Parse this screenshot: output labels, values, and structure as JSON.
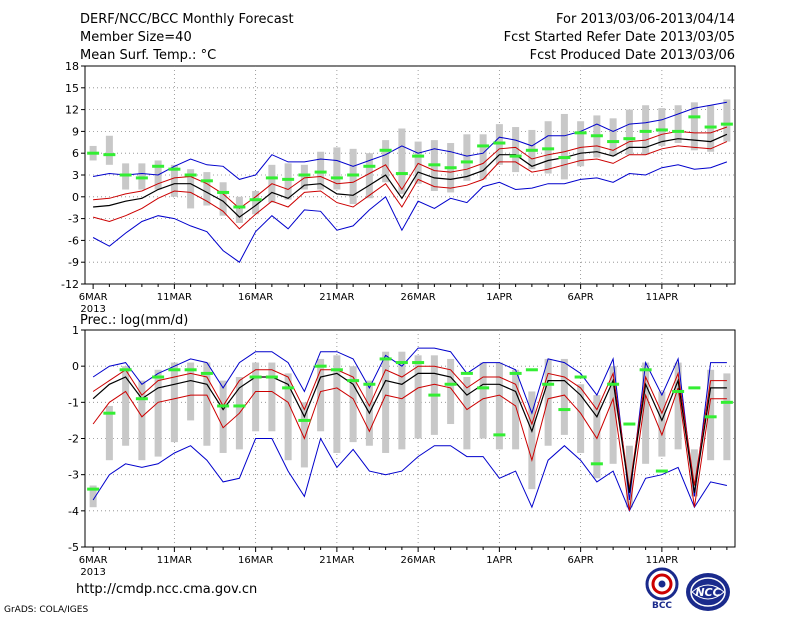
{
  "header": {
    "title": "DERF/NCC/BCC Monthly Forecast",
    "member_size": "Member Size=40",
    "variable": "Mean Surf. Temp.: °C",
    "period": "For 2013/03/06-2013/04/14",
    "started": "Fcst Started Refer Date 2013/03/05",
    "produced": "Fcst Produced Date 2013/03/06"
  },
  "footer": {
    "url": "http://cmdp.ncc.cma.gov.cn",
    "grads": "GrADS: COLA/IGES",
    "logo_bcc": "BCC",
    "logo_ncc": "NCC"
  },
  "colors": {
    "mean": "#000000",
    "band": "#cc0000",
    "envelope": "#0000cc",
    "obs": "#33ee33",
    "box": "#c8c8c8"
  },
  "chart_data": [
    {
      "type": "line",
      "title": "Mean Surf. Temp.: °C",
      "x_tick_labels": [
        "6MAR",
        "11MAR",
        "16MAR",
        "21MAR",
        "26MAR",
        "1APR",
        "6APR",
        "11APR"
      ],
      "x_year_label": "2013",
      "ylim": [
        -12,
        18
      ],
      "y_ticks": [
        -12,
        -9,
        -6,
        -3,
        0,
        3,
        6,
        9,
        12,
        15,
        18
      ],
      "x_days": 40,
      "series": [
        {
          "name": "max",
          "values": [
            2.8,
            3.2,
            3.0,
            3.2,
            3.0,
            4.2,
            5.2,
            4.4,
            4.2,
            2.4,
            3.0,
            5.8,
            4.8,
            4.8,
            5.2,
            5.0,
            4.2,
            5.0,
            5.8,
            7.0,
            6.0,
            6.6,
            6.2,
            5.6,
            6.0,
            8.2,
            7.8,
            7.0,
            8.4,
            8.4,
            9.0,
            10.0,
            9.0,
            10.0,
            10.2,
            10.6,
            11.4,
            12.2,
            12.6,
            13.0
          ]
        },
        {
          "name": "upper",
          "values": [
            -0.4,
            -0.2,
            0.4,
            0.8,
            1.8,
            2.6,
            2.8,
            1.8,
            0.4,
            -1.6,
            0.0,
            1.8,
            1.0,
            2.6,
            2.8,
            1.8,
            2.0,
            3.2,
            4.4,
            1.0,
            4.6,
            3.6,
            3.4,
            3.8,
            4.6,
            6.6,
            6.8,
            5.2,
            5.8,
            6.2,
            6.8,
            7.0,
            6.4,
            7.6,
            7.8,
            8.6,
            9.0,
            8.8,
            8.8,
            9.6
          ]
        },
        {
          "name": "mean",
          "values": [
            -1.4,
            -1.2,
            -0.6,
            -0.2,
            1.0,
            1.8,
            1.8,
            0.6,
            -0.6,
            -2.8,
            -1.2,
            0.6,
            -0.2,
            1.6,
            1.8,
            0.4,
            0.2,
            1.6,
            3.0,
            -0.2,
            3.4,
            2.6,
            2.4,
            2.8,
            3.6,
            5.8,
            5.8,
            4.2,
            5.0,
            5.4,
            6.0,
            6.2,
            5.6,
            6.8,
            6.8,
            7.6,
            8.0,
            7.8,
            7.6,
            8.6
          ]
        },
        {
          "name": "lower",
          "values": [
            -2.8,
            -3.4,
            -2.6,
            -1.6,
            -0.2,
            0.8,
            0.6,
            -0.6,
            -2.0,
            -4.4,
            -2.4,
            -0.6,
            -1.4,
            0.6,
            0.8,
            -0.8,
            -1.4,
            0.2,
            1.8,
            -1.4,
            2.4,
            1.4,
            1.2,
            1.6,
            2.4,
            4.8,
            4.8,
            3.4,
            3.8,
            4.4,
            5.0,
            5.2,
            4.6,
            5.8,
            5.8,
            6.6,
            7.0,
            6.8,
            6.6,
            7.6
          ]
        },
        {
          "name": "min",
          "values": [
            -5.6,
            -6.8,
            -5.0,
            -3.4,
            -2.6,
            -3.0,
            -4.0,
            -4.8,
            -7.4,
            -9.0,
            -4.8,
            -2.6,
            -4.4,
            -1.8,
            -2.0,
            -4.6,
            -4.0,
            -1.8,
            0.0,
            -4.6,
            -0.6,
            -1.6,
            -0.2,
            -0.8,
            1.4,
            2.0,
            1.0,
            1.2,
            1.8,
            1.8,
            2.4,
            2.6,
            2.0,
            3.2,
            3.0,
            4.0,
            4.4,
            3.8,
            4.0,
            4.8
          ]
        },
        {
          "name": "observed",
          "values": [
            6.0,
            5.8,
            3.0,
            2.6,
            4.2,
            3.8,
            3.0,
            2.2,
            0.6,
            -1.4,
            -0.4,
            2.6,
            2.4,
            3.0,
            3.4,
            2.6,
            3.0,
            4.2,
            6.4,
            3.2,
            5.6,
            4.4,
            4.0,
            4.8,
            7.0,
            7.4,
            5.6,
            6.4,
            6.6,
            5.4,
            8.8,
            8.4,
            7.6,
            8.0,
            9.0,
            9.2,
            9.0,
            11.0,
            9.6,
            10.0
          ]
        },
        {
          "name": "box_high",
          "values": [
            7.0,
            8.4,
            4.6,
            4.6,
            5.0,
            4.4,
            3.8,
            3.4,
            2.0,
            0.0,
            0.8,
            4.4,
            4.6,
            4.4,
            6.2,
            6.8,
            6.6,
            6.0,
            7.8,
            9.4,
            7.6,
            7.8,
            7.4,
            8.6,
            8.6,
            10.0,
            9.6,
            9.2,
            10.4,
            11.4,
            10.4,
            11.2,
            10.8,
            12.0,
            12.6,
            12.2,
            12.6,
            13.0,
            12.6,
            13.4
          ]
        },
        {
          "name": "box_low",
          "values": [
            5.0,
            4.4,
            1.0,
            1.0,
            1.0,
            0.0,
            -1.6,
            -1.2,
            -2.6,
            -3.6,
            -2.4,
            -0.8,
            -0.4,
            1.0,
            1.0,
            1.0,
            -1.0,
            -0.2,
            2.0,
            0.4,
            1.8,
            0.8,
            0.6,
            2.2,
            2.4,
            4.4,
            3.4,
            3.8,
            3.2,
            2.4,
            4.2,
            5.4,
            5.6,
            5.8,
            5.8,
            7.0,
            7.4,
            6.4,
            6.2,
            7.6
          ]
        }
      ]
    },
    {
      "type": "line",
      "title": "Prec.: log(mm/d)",
      "x_tick_labels": [
        "6MAR",
        "11MAR",
        "16MAR",
        "21MAR",
        "26MAR",
        "1APR",
        "6APR",
        "11APR"
      ],
      "x_year_label": "2013",
      "ylim": [
        -5,
        1
      ],
      "y_ticks": [
        -5,
        -4,
        -3,
        -2,
        -1,
        0,
        1
      ],
      "x_days": 40,
      "series": [
        {
          "name": "max",
          "values": [
            -0.3,
            0.0,
            0.1,
            -0.5,
            -0.2,
            0.0,
            0.2,
            0.1,
            -0.6,
            0.1,
            0.4,
            0.4,
            0.1,
            -0.7,
            0.4,
            0.4,
            0.2,
            -0.6,
            0.3,
            0.0,
            0.5,
            0.5,
            0.4,
            -0.2,
            0.1,
            0.1,
            -0.1,
            -1.3,
            0.2,
            0.1,
            -0.2,
            -0.8,
            0.2,
            -3.7,
            0.1,
            -0.8,
            0.2,
            -3.6,
            0.1,
            0.1
          ]
        },
        {
          "name": "upper",
          "values": [
            -0.7,
            -0.4,
            -0.1,
            -0.8,
            -0.4,
            -0.3,
            -0.2,
            -0.3,
            -1.1,
            -0.4,
            -0.1,
            -0.1,
            -0.3,
            -1.2,
            -0.1,
            -0.1,
            -0.3,
            -1.1,
            -0.1,
            -0.3,
            0.0,
            0.0,
            -0.1,
            -0.6,
            -0.3,
            -0.3,
            -0.5,
            -1.6,
            -0.2,
            -0.3,
            -0.6,
            -1.2,
            -0.2,
            -3.4,
            -0.3,
            -1.3,
            -0.2,
            -3.3,
            -0.4,
            -0.4
          ]
        },
        {
          "name": "mean",
          "values": [
            -0.9,
            -0.5,
            -0.3,
            -0.9,
            -0.6,
            -0.5,
            -0.4,
            -0.5,
            -1.2,
            -0.6,
            -0.3,
            -0.3,
            -0.5,
            -1.4,
            -0.3,
            -0.2,
            -0.5,
            -1.3,
            -0.4,
            -0.5,
            -0.2,
            -0.2,
            -0.3,
            -0.8,
            -0.5,
            -0.5,
            -0.7,
            -1.8,
            -0.4,
            -0.4,
            -0.8,
            -1.4,
            -0.4,
            -3.5,
            -0.5,
            -1.5,
            -0.4,
            -3.5,
            -0.6,
            -0.6
          ]
        },
        {
          "name": "lower",
          "values": [
            -1.6,
            -1.0,
            -0.7,
            -1.4,
            -1.0,
            -0.9,
            -0.8,
            -0.8,
            -1.7,
            -1.3,
            -0.7,
            -0.7,
            -1.0,
            -2.0,
            -0.7,
            -0.6,
            -0.9,
            -1.8,
            -0.8,
            -0.9,
            -0.6,
            -0.5,
            -0.6,
            -1.2,
            -0.9,
            -0.8,
            -1.1,
            -2.6,
            -0.9,
            -0.8,
            -1.3,
            -2.0,
            -0.9,
            -4.0,
            -0.8,
            -1.9,
            -0.6,
            -3.9,
            -0.9,
            -0.9
          ]
        },
        {
          "name": "min",
          "values": [
            -3.7,
            -3.0,
            -2.7,
            -2.8,
            -2.7,
            -2.4,
            -2.2,
            -2.6,
            -3.2,
            -3.1,
            -2.0,
            -2.0,
            -2.9,
            -3.6,
            -2.0,
            -2.8,
            -2.3,
            -2.9,
            -3.0,
            -2.9,
            -2.5,
            -2.2,
            -2.2,
            -2.5,
            -2.5,
            -3.1,
            -2.9,
            -3.9,
            -2.6,
            -2.2,
            -2.6,
            -3.2,
            -2.9,
            -4.0,
            -3.1,
            -3.0,
            -2.8,
            -3.9,
            -3.2,
            -3.3
          ]
        },
        {
          "name": "observed",
          "values": [
            -3.4,
            -1.3,
            -0.1,
            -0.9,
            -0.3,
            -0.1,
            -0.1,
            -0.2,
            -1.1,
            -1.1,
            -0.3,
            -0.3,
            -0.6,
            -1.5,
            0.0,
            -0.1,
            -0.4,
            -0.5,
            0.2,
            0.1,
            0.1,
            -0.8,
            -0.5,
            -0.2,
            -0.6,
            -1.9,
            -0.2,
            -0.1,
            -0.5,
            -1.2,
            -0.3,
            -2.7,
            -0.5,
            -1.6,
            -0.1,
            -2.9,
            -0.7,
            -0.6,
            -1.4,
            -1.0
          ]
        },
        {
          "name": "box_high",
          "values": [
            -3.3,
            -1.1,
            0.0,
            -0.4,
            -0.1,
            0.1,
            0.1,
            0.1,
            -0.4,
            -0.3,
            0.1,
            0.1,
            -0.2,
            -1.0,
            0.2,
            0.3,
            0.0,
            -0.4,
            0.4,
            0.4,
            0.3,
            0.3,
            0.2,
            -0.3,
            0.1,
            0.1,
            -0.1,
            -0.7,
            0.2,
            0.2,
            -0.5,
            -0.8,
            0.0,
            -2.2,
            0.1,
            -0.7,
            0.1,
            -2.3,
            -0.1,
            -0.2
          ]
        },
        {
          "name": "box_low",
          "values": [
            -3.9,
            -2.6,
            -2.2,
            -2.6,
            -2.5,
            -2.1,
            -1.5,
            -2.2,
            -2.4,
            -2.3,
            -1.8,
            -1.8,
            -2.6,
            -2.8,
            -1.8,
            -2.4,
            -2.1,
            -2.2,
            -2.4,
            -2.3,
            -2.0,
            -1.9,
            -1.6,
            -2.3,
            -2.0,
            -2.3,
            -2.3,
            -3.4,
            -2.2,
            -1.9,
            -2.4,
            -3.1,
            -2.7,
            -3.9,
            -2.7,
            -2.5,
            -2.3,
            -3.6,
            -2.6,
            -2.6
          ]
        }
      ]
    }
  ]
}
